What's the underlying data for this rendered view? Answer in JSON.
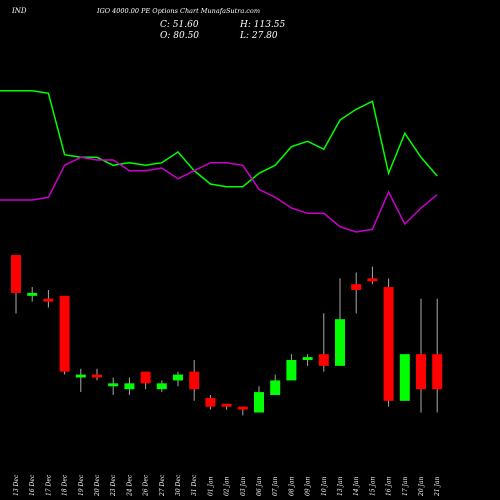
{
  "header": {
    "symbol": "IND",
    "subtitle": "IGO 4000.00  PE Options  Chart MunafaSutra.com"
  },
  "ohlc": {
    "open": "O: 80.50",
    "high": "H: 113.55",
    "low": "L: 27.80",
    "close": "C: 51.60"
  },
  "colors": {
    "background": "#000000",
    "bull": "#00ff00",
    "bear": "#ff0000",
    "wick": "#aaaaaa",
    "line_a": "#00ff00",
    "line_b": "#cc00cc",
    "text": "#ffffff"
  },
  "chart_data": {
    "type": "candlestick",
    "categories": [
      "13 Dec",
      "16 Dec",
      "17 Dec",
      "18 Dec",
      "19 Dec",
      "20 Dec",
      "23 Dec",
      "24 Dec",
      "26 Dec",
      "27 Dec",
      "30 Dec",
      "31 Dec",
      "01 Jan",
      "02 Jan",
      "03 Jan",
      "06 Jan",
      "07 Jan",
      "08 Jan",
      "09 Jan",
      "10 Jan",
      "13 Jan",
      "14 Jan",
      "15 Jan",
      "16 Jan",
      "17 Jan",
      "20 Jan",
      "21 Jan"
    ],
    "candles": [
      {
        "o": 100,
        "h": 100,
        "l": 80,
        "c": 87
      },
      {
        "o": 86,
        "h": 89,
        "l": 84,
        "c": 87
      },
      {
        "o": 85,
        "h": 88,
        "l": 82,
        "c": 84
      },
      {
        "o": 86,
        "h": 86,
        "l": 59,
        "c": 60
      },
      {
        "o": 58,
        "h": 61,
        "l": 53,
        "c": 59
      },
      {
        "o": 59,
        "h": 61,
        "l": 57,
        "c": 58
      },
      {
        "o": 55,
        "h": 58,
        "l": 52,
        "c": 56
      },
      {
        "o": 54,
        "h": 58,
        "l": 52,
        "c": 56
      },
      {
        "o": 60,
        "h": 60,
        "l": 54,
        "c": 56
      },
      {
        "o": 54,
        "h": 57,
        "l": 53,
        "c": 56
      },
      {
        "o": 57,
        "h": 60,
        "l": 55,
        "c": 59
      },
      {
        "o": 60,
        "h": 64,
        "l": 50,
        "c": 54
      },
      {
        "o": 51,
        "h": 52,
        "l": 47,
        "c": 48
      },
      {
        "o": 49,
        "h": 49,
        "l": 47,
        "c": 48
      },
      {
        "o": 48,
        "h": 48,
        "l": 45,
        "c": 47
      },
      {
        "o": 46,
        "h": 55,
        "l": 46,
        "c": 53
      },
      {
        "o": 52,
        "h": 59,
        "l": 52,
        "c": 57
      },
      {
        "o": 57,
        "h": 66,
        "l": 57,
        "c": 64
      },
      {
        "o": 64,
        "h": 66,
        "l": 62,
        "c": 65
      },
      {
        "o": 66,
        "h": 80,
        "l": 60,
        "c": 62
      },
      {
        "o": 62,
        "h": 92,
        "l": 62,
        "c": 78
      },
      {
        "o": 90,
        "h": 94,
        "l": 80,
        "c": 88
      },
      {
        "o": 92,
        "h": 96,
        "l": 90,
        "c": 91
      },
      {
        "o": 89,
        "h": 92,
        "l": 48,
        "c": 50
      },
      {
        "o": 50,
        "h": 66,
        "l": 50,
        "c": 66
      },
      {
        "o": 66,
        "h": 85,
        "l": 46,
        "c": 54
      },
      {
        "o": 66,
        "h": 85,
        "l": 46,
        "c": 54
      }
    ],
    "series": [
      {
        "values": [
          86,
          86,
          85,
          62,
          61,
          61,
          58,
          59,
          58,
          59,
          63,
          56,
          51,
          50,
          50,
          55,
          58,
          65,
          67,
          64,
          75,
          79,
          82,
          55,
          70,
          61,
          54
        ]
      },
      {
        "values": [
          45,
          45,
          46,
          58,
          61,
          60,
          60,
          56,
          56,
          57,
          53,
          56,
          59,
          59,
          58,
          49,
          46,
          42,
          40,
          40,
          35,
          33,
          34,
          48,
          36,
          42,
          47
        ]
      }
    ]
  }
}
